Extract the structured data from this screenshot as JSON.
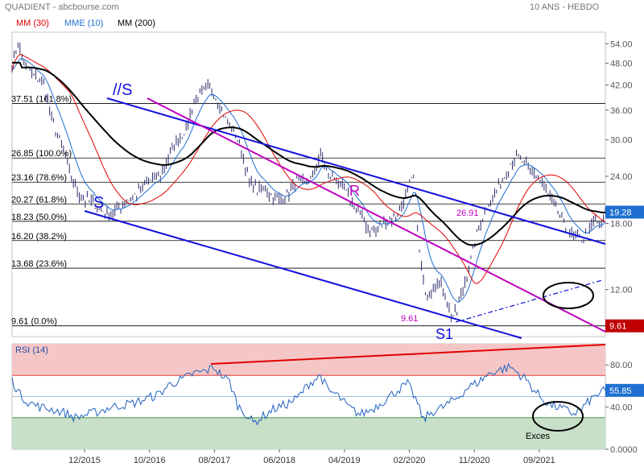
{
  "header": {
    "title": "QUADIENT - abcbourse.com",
    "period": "10 ANS - HEBDO"
  },
  "legend": [
    {
      "label": "MM (30)",
      "color": "#e00000"
    },
    {
      "label": "MME (10)",
      "color": "#1f6fd0"
    },
    {
      "label": "MM (200)",
      "color": "#000000"
    }
  ],
  "colors": {
    "price": "#2a2a6a",
    "mm30": "#e00000",
    "mme10": "#1f6fd0",
    "mm200": "#000000",
    "channel": "#1010e0",
    "resistance": "#c000c0",
    "rsi": "#2060c0",
    "trend": "#e00000",
    "overbought": "#f5c6c6",
    "oversold": "#c8dfc8",
    "last_price_box": "#1f6fd0",
    "low_box": "#c00000"
  },
  "chart_data": [
    {
      "type": "line",
      "title": "QUADIENT - abcbourse.com",
      "scale": "log",
      "ylim": [
        9.0,
        58.0
      ],
      "y_ticks": [
        "54.00",
        "48.00",
        "42.00",
        "36.00",
        "30.00",
        "24.00",
        "18.00",
        "12.00"
      ],
      "y_tick_values": [
        54,
        48,
        42,
        36,
        30,
        24,
        18,
        12
      ],
      "x_ticks": [
        "12/2015",
        "10/2016",
        "08/2017",
        "06/2018",
        "04/2019",
        "02/2020",
        "11/2020",
        "09/2021"
      ],
      "series": [
        {
          "name": "MM (30)",
          "key": "mm30"
        },
        {
          "name": "MME (10)",
          "key": "mme10"
        },
        {
          "name": "MM (200)",
          "key": "mm200"
        }
      ],
      "price_anchors": [
        [
          0,
          47
        ],
        [
          3,
          54
        ],
        [
          6,
          48
        ],
        [
          10,
          45
        ],
        [
          16,
          42
        ],
        [
          20,
          34
        ],
        [
          25,
          29
        ],
        [
          30,
          23.5
        ],
        [
          35,
          21
        ],
        [
          40,
          20.5
        ],
        [
          45,
          19.5
        ],
        [
          50,
          19
        ],
        [
          55,
          20
        ],
        [
          60,
          21
        ],
        [
          65,
          22
        ],
        [
          70,
          23.5
        ],
        [
          75,
          24.2
        ],
        [
          80,
          27.5
        ],
        [
          84,
          30
        ],
        [
          88,
          32
        ],
        [
          92,
          38
        ],
        [
          96,
          40
        ],
        [
          100,
          41.5
        ],
        [
          104,
          38
        ],
        [
          108,
          34
        ],
        [
          112,
          32
        ],
        [
          116,
          28
        ],
        [
          120,
          23
        ],
        [
          124,
          22
        ],
        [
          128,
          22.3
        ],
        [
          132,
          21
        ],
        [
          136,
          20.8
        ],
        [
          140,
          21.5
        ],
        [
          144,
          23.5
        ],
        [
          148,
          23
        ],
        [
          152,
          24
        ],
        [
          156,
          27.5
        ],
        [
          160,
          24.2
        ],
        [
          164,
          23.5
        ],
        [
          168,
          22
        ],
        [
          172,
          20.3
        ],
        [
          176,
          19
        ],
        [
          180,
          17.5
        ],
        [
          184,
          17.2
        ],
        [
          188,
          18
        ],
        [
          192,
          18.5
        ],
        [
          196,
          19.3
        ],
        [
          200,
          22
        ],
        [
          203,
          24
        ],
        [
          206,
          15
        ],
        [
          209,
          11.5
        ],
        [
          212,
          12
        ],
        [
          215,
          12.8
        ],
        [
          218,
          12
        ],
        [
          222,
          10.2
        ],
        [
          225,
          10.5
        ],
        [
          228,
          12
        ],
        [
          232,
          14.5
        ],
        [
          236,
          17.5
        ],
        [
          240,
          20
        ],
        [
          244,
          21.5
        ],
        [
          248,
          23.5
        ],
        [
          252,
          26
        ],
        [
          256,
          26.9
        ],
        [
          260,
          25.5
        ],
        [
          264,
          24.5
        ],
        [
          268,
          23
        ],
        [
          272,
          21
        ],
        [
          276,
          19.5
        ],
        [
          280,
          17.5
        ],
        [
          284,
          16.5
        ],
        [
          288,
          16.3
        ],
        [
          292,
          17.2
        ],
        [
          295,
          18.5
        ],
        [
          298,
          17.6
        ],
        [
          300,
          19.28
        ]
      ],
      "last_price": "19.28",
      "low_label": "9.61",
      "fibonacci": [
        {
          "label": "37.51 (161.8%)",
          "value": 37.51
        },
        {
          "label": "26.85 (100.0%)",
          "value": 26.85
        },
        {
          "label": "23.16 (78.6%)",
          "value": 23.16
        },
        {
          "label": "20.27 (61.8%)",
          "value": 20.27
        },
        {
          "label": "18.23 (50.0%)",
          "value": 18.23
        },
        {
          "label": "16.20 (38.2%)",
          "value": 16.2
        },
        {
          "label": "13.68 (23.6%)",
          "value": 13.68
        },
        {
          "label": "9.61 (0.0%)",
          "value": 9.61
        }
      ],
      "annotations": [
        {
          "text": "//S",
          "color": "#1010e0"
        },
        {
          "text": "S",
          "color": "#1010e0"
        },
        {
          "text": "R",
          "color": "#c000c0"
        },
        {
          "text": "S1",
          "color": "#1010e0"
        },
        {
          "text": "26.91",
          "color": "#c000c0"
        },
        {
          "text": "9.61",
          "color": "#c000c0"
        }
      ]
    },
    {
      "type": "line",
      "title": "RSI (14)",
      "ylim": [
        0,
        100
      ],
      "y_ticks": [
        "80.00",
        "40.00",
        "0.0000"
      ],
      "y_tick_values": [
        80,
        40,
        0
      ],
      "overbought": 70,
      "oversold": 30,
      "midline": 50,
      "last_value": "55.85",
      "rsi_anchors": [
        [
          0,
          65
        ],
        [
          4,
          52
        ],
        [
          8,
          45
        ],
        [
          14,
          40
        ],
        [
          20,
          38
        ],
        [
          26,
          35
        ],
        [
          32,
          30
        ],
        [
          38,
          33
        ],
        [
          44,
          36
        ],
        [
          50,
          40
        ],
        [
          56,
          42
        ],
        [
          62,
          44
        ],
        [
          68,
          48
        ],
        [
          74,
          52
        ],
        [
          80,
          62
        ],
        [
          86,
          66
        ],
        [
          92,
          72
        ],
        [
          98,
          74
        ],
        [
          102,
          78
        ],
        [
          106,
          70
        ],
        [
          110,
          64
        ],
        [
          114,
          42
        ],
        [
          118,
          34
        ],
        [
          122,
          25
        ],
        [
          126,
          30
        ],
        [
          132,
          38
        ],
        [
          138,
          42
        ],
        [
          144,
          48
        ],
        [
          150,
          62
        ],
        [
          156,
          70
        ],
        [
          160,
          55
        ],
        [
          164,
          52
        ],
        [
          170,
          40
        ],
        [
          176,
          33
        ],
        [
          182,
          38
        ],
        [
          188,
          46
        ],
        [
          194,
          55
        ],
        [
          200,
          62
        ],
        [
          204,
          48
        ],
        [
          208,
          28
        ],
        [
          212,
          35
        ],
        [
          218,
          40
        ],
        [
          222,
          45
        ],
        [
          226,
          50
        ],
        [
          230,
          58
        ],
        [
          236,
          64
        ],
        [
          240,
          70
        ],
        [
          244,
          74
        ],
        [
          248,
          76
        ],
        [
          252,
          78
        ],
        [
          256,
          72
        ],
        [
          260,
          66
        ],
        [
          264,
          56
        ],
        [
          268,
          48
        ],
        [
          272,
          42
        ],
        [
          276,
          40
        ],
        [
          280,
          37
        ],
        [
          284,
          34
        ],
        [
          288,
          38
        ],
        [
          292,
          46
        ],
        [
          296,
          52
        ],
        [
          300,
          55.85
        ]
      ],
      "annotations": [
        {
          "text": "Exces",
          "color": "#000000"
        }
      ]
    }
  ]
}
